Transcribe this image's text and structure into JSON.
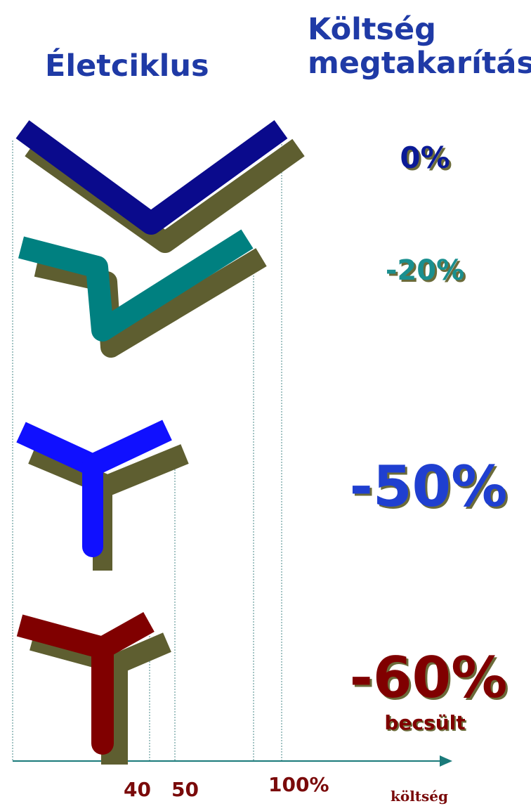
{
  "headers": {
    "lifecycle": "Életciklus",
    "savings_line1": "Költség",
    "savings_line2": "megtakarítás"
  },
  "rows": [
    {
      "savings": "0%",
      "color": "#0a0a8c",
      "note": ""
    },
    {
      "savings": "-20%",
      "color": "#008080",
      "note": ""
    },
    {
      "savings": "-50%",
      "color": "#1010ff",
      "note": ""
    },
    {
      "savings": "-60%",
      "color": "#800000",
      "note": "becsült"
    }
  ],
  "shadow_color": "#5e5e30",
  "axis": {
    "label": "költség",
    "ticks": [
      "40",
      "50",
      "100%"
    ]
  }
}
